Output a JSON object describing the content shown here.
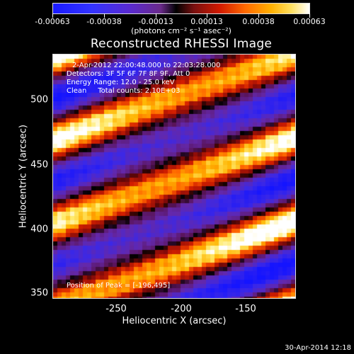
{
  "colorbar": {
    "tick_labels": [
      "-0.00063",
      "-0.00038",
      "-0.00013",
      "0.00013",
      "0.00038",
      "0.00063"
    ],
    "units": "(photons cm⁻² s⁻¹ asec⁻²)"
  },
  "title": "Reconstructed RHESSI Image",
  "info": {
    "time_range": "2-Apr-2012 22:00:48.000 to 22:03:28.000",
    "detectors": "Detectors: 3F 5F 6F 7F 8F 9F, Att 0",
    "energy": "Energy Range: 12.0 - 25.0 keV",
    "method": "Clean     Total counts: 2.10E+03",
    "peak": "Position of Peak = [-196,495]"
  },
  "axes": {
    "xlabel": "Heliocentric X (arcsec)",
    "ylabel": "Heliocentric Y (arcsec)",
    "x_ticks": [
      "-250",
      "-200",
      "-150"
    ],
    "y_ticks": [
      "500",
      "450",
      "400",
      "350"
    ]
  },
  "chart_data": {
    "type": "heatmap",
    "title": "Reconstructed RHESSI Image",
    "xlabel": "Heliocentric X (arcsec)",
    "ylabel": "Heliocentric Y (arcsec)",
    "xlim": [
      -297,
      -109
    ],
    "ylim": [
      345,
      533
    ],
    "x_ticks": [
      -250,
      -200,
      -150
    ],
    "y_ticks": [
      350,
      400,
      450,
      500
    ],
    "colorbar_range": [
      -0.00063,
      0.00063
    ],
    "colorbar_ticks": [
      -0.00063,
      -0.00038,
      -0.00013,
      0.00013,
      0.00038,
      0.00063
    ],
    "peak": [
      -196,
      495
    ],
    "pattern": "diagonal stripes rising to the right, alternating positive (yellow/red) and negative (blue/purple)"
  },
  "timestamp": "30-Apr-2014 12:18"
}
